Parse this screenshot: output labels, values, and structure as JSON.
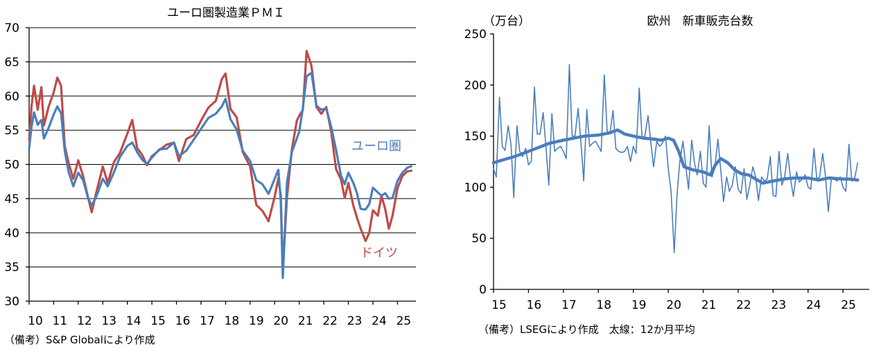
{
  "chart_data": [
    {
      "type": "line",
      "title": "ユーロ圏製造業ＰＭＩ",
      "xlabel": "",
      "ylabel": "",
      "ylim": [
        30,
        70
      ],
      "yticks": [
        "30",
        "35",
        "40",
        "45",
        "50",
        "55",
        "60",
        "65",
        "70"
      ],
      "xlim": [
        2010,
        2025.75
      ],
      "xticks": [
        "10",
        "11",
        "12",
        "13",
        "14",
        "15",
        "16",
        "17",
        "18",
        "19",
        "20",
        "21",
        "22",
        "23",
        "24",
        "25"
      ],
      "note": "（備考）S&P Globalにより作成",
      "series": [
        {
          "name": "ユーロ圏",
          "color": "#4a7ebb",
          "x": [
            2010.0,
            2010.1,
            2010.2,
            2010.35,
            2010.5,
            2010.6,
            2010.8,
            2011.0,
            2011.15,
            2011.3,
            2011.45,
            2011.6,
            2011.8,
            2012.0,
            2012.2,
            2012.4,
            2012.55,
            2012.75,
            2013.0,
            2013.2,
            2013.45,
            2013.7,
            2014.0,
            2014.2,
            2014.4,
            2014.6,
            2014.8,
            2015.0,
            2015.3,
            2015.6,
            2015.9,
            2016.1,
            2016.4,
            2016.7,
            2017.0,
            2017.3,
            2017.6,
            2017.85,
            2018.0,
            2018.2,
            2018.45,
            2018.7,
            2019.0,
            2019.25,
            2019.5,
            2019.75,
            2020.0,
            2020.15,
            2020.25,
            2020.33,
            2020.5,
            2020.7,
            2020.9,
            2021.0,
            2021.15,
            2021.3,
            2021.5,
            2021.7,
            2021.9,
            2022.1,
            2022.3,
            2022.5,
            2022.7,
            2022.85,
            2023.0,
            2023.2,
            2023.35,
            2023.5,
            2023.7,
            2023.85,
            2024.0,
            2024.2,
            2024.35,
            2024.5,
            2024.65,
            2024.8,
            2025.0,
            2025.2,
            2025.4,
            2025.6
          ],
          "values": [
            52.3,
            55.5,
            57.6,
            55.8,
            56.5,
            53.8,
            55.4,
            57.3,
            58.5,
            57.5,
            52.0,
            49.0,
            46.8,
            48.8,
            47.7,
            45.1,
            44.0,
            45.4,
            47.9,
            46.8,
            48.8,
            51.1,
            52.7,
            53.2,
            51.8,
            50.7,
            50.1,
            51.0,
            52.2,
            52.3,
            53.2,
            51.2,
            52.0,
            53.6,
            55.2,
            56.8,
            57.4,
            58.5,
            59.6,
            56.6,
            55.1,
            52.0,
            50.5,
            47.7,
            47.1,
            45.7,
            47.9,
            49.2,
            44.5,
            33.4,
            47.4,
            51.8,
            53.8,
            54.8,
            58.3,
            62.9,
            63.4,
            58.6,
            58.0,
            58.2,
            55.5,
            52.1,
            48.4,
            47.1,
            48.8,
            47.3,
            45.8,
            43.5,
            43.4,
            44.2,
            46.6,
            45.9,
            45.4,
            45.8,
            45.0,
            45.1,
            47.6,
            48.8,
            49.5,
            49.8
          ]
        },
        {
          "name": "ドイツ",
          "color": "#be4b48",
          "x": [
            2010.0,
            2010.1,
            2010.2,
            2010.35,
            2010.5,
            2010.6,
            2010.8,
            2011.0,
            2011.15,
            2011.3,
            2011.45,
            2011.6,
            2011.8,
            2012.0,
            2012.2,
            2012.4,
            2012.55,
            2012.75,
            2013.0,
            2013.2,
            2013.45,
            2013.7,
            2014.0,
            2014.2,
            2014.4,
            2014.6,
            2014.8,
            2015.0,
            2015.3,
            2015.6,
            2015.9,
            2016.1,
            2016.4,
            2016.7,
            2017.0,
            2017.3,
            2017.6,
            2017.85,
            2018.0,
            2018.2,
            2018.45,
            2018.7,
            2019.0,
            2019.25,
            2019.5,
            2019.75,
            2020.0,
            2020.15,
            2020.25,
            2020.33,
            2020.5,
            2020.7,
            2020.9,
            2021.0,
            2021.15,
            2021.3,
            2021.5,
            2021.7,
            2021.9,
            2022.1,
            2022.3,
            2022.5,
            2022.7,
            2022.85,
            2023.0,
            2023.2,
            2023.35,
            2023.5,
            2023.7,
            2023.85,
            2024.0,
            2024.2,
            2024.35,
            2024.5,
            2024.65,
            2024.8,
            2025.0,
            2025.2,
            2025.4,
            2025.6
          ],
          "values": [
            53.5,
            58.5,
            61.5,
            58.0,
            61.3,
            55.7,
            58.5,
            60.5,
            62.7,
            61.5,
            52.7,
            50.3,
            47.9,
            50.6,
            48.3,
            45.2,
            43.0,
            46.1,
            49.7,
            47.3,
            50.3,
            51.7,
            54.5,
            56.5,
            52.4,
            51.4,
            49.9,
            51.2,
            52.1,
            52.9,
            53.2,
            50.5,
            53.7,
            54.3,
            56.4,
            58.3,
            59.3,
            62.5,
            63.3,
            58.1,
            56.9,
            51.8,
            49.7,
            44.1,
            43.2,
            41.7,
            45.3,
            48.0,
            45.4,
            34.5,
            45.2,
            52.2,
            56.4,
            57.1,
            58.0,
            66.6,
            64.4,
            58.4,
            57.4,
            58.4,
            54.8,
            49.3,
            47.8,
            45.1,
            47.3,
            44.0,
            42.2,
            40.6,
            38.8,
            40.0,
            43.3,
            42.5,
            45.4,
            43.5,
            40.6,
            42.5,
            46.5,
            48.3,
            49.0,
            49.1
          ]
        }
      ]
    },
    {
      "type": "line",
      "title": "欧州　新車販売台数",
      "ylabel": "（万台）",
      "xlabel": "",
      "ylim": [
        0,
        250
      ],
      "yticks": [
        "0",
        "50",
        "100",
        "150",
        "200",
        "250"
      ],
      "xlim": [
        2015,
        2025.75
      ],
      "xticks": [
        "15",
        "16",
        "17",
        "18",
        "19",
        "20",
        "21",
        "22",
        "23",
        "24",
        "25"
      ],
      "note": "（備考）LSEGにより作成　太線：12か月平均",
      "series": [
        {
          "name": "月次",
          "color": "#4a7ebb",
          "x": [
            2015.0,
            2015.08,
            2015.17,
            2015.25,
            2015.33,
            2015.42,
            2015.5,
            2015.58,
            2015.67,
            2015.75,
            2015.83,
            2015.92,
            2016.0,
            2016.08,
            2016.17,
            2016.25,
            2016.33,
            2016.42,
            2016.5,
            2016.58,
            2016.67,
            2016.75,
            2016.83,
            2016.92,
            2017.0,
            2017.08,
            2017.17,
            2017.25,
            2017.33,
            2017.42,
            2017.5,
            2017.58,
            2017.67,
            2017.75,
            2017.83,
            2017.92,
            2018.0,
            2018.08,
            2018.17,
            2018.25,
            2018.33,
            2018.42,
            2018.5,
            2018.58,
            2018.67,
            2018.75,
            2018.83,
            2018.92,
            2019.0,
            2019.08,
            2019.17,
            2019.25,
            2019.33,
            2019.42,
            2019.5,
            2019.58,
            2019.67,
            2019.75,
            2019.83,
            2019.92,
            2020.0,
            2020.08,
            2020.17,
            2020.25,
            2020.33,
            2020.42,
            2020.5,
            2020.58,
            2020.67,
            2020.75,
            2020.83,
            2020.92,
            2021.0,
            2021.08,
            2021.17,
            2021.25,
            2021.33,
            2021.42,
            2021.5,
            2021.58,
            2021.67,
            2021.75,
            2021.83,
            2021.92,
            2022.0,
            2022.08,
            2022.17,
            2022.25,
            2022.33,
            2022.42,
            2022.5,
            2022.58,
            2022.67,
            2022.75,
            2022.83,
            2022.92,
            2023.0,
            2023.08,
            2023.17,
            2023.25,
            2023.33,
            2023.42,
            2023.5,
            2023.58,
            2023.67,
            2023.75,
            2023.83,
            2023.92,
            2024.0,
            2024.08,
            2024.17,
            2024.25,
            2024.33,
            2024.42,
            2024.5,
            2024.58,
            2024.67,
            2024.75,
            2024.83,
            2024.92,
            2025.0,
            2025.08,
            2025.17,
            2025.25,
            2025.33,
            2025.42
          ],
          "values": [
            118,
            110,
            188,
            140,
            136,
            160,
            142,
            90,
            160,
            135,
            130,
            138,
            122,
            125,
            198,
            152,
            152,
            173,
            140,
            102,
            172,
            135,
            138,
            140,
            135,
            128,
            220,
            150,
            150,
            177,
            145,
            106,
            176,
            140,
            143,
            145,
            140,
            135,
            210,
            155,
            152,
            175,
            138,
            135,
            134,
            135,
            140,
            125,
            140,
            133,
            197,
            148,
            150,
            170,
            144,
            120,
            145,
            140,
            143,
            150,
            118,
            96,
            36,
            92,
            125,
            145,
            121,
            98,
            146,
            124,
            112,
            135,
            104,
            100,
            160,
            110,
            118,
            147,
            118,
            86,
            110,
            96,
            102,
            120,
            98,
            94,
            118,
            88,
            102,
            120,
            110,
            87,
            110,
            106,
            108,
            130,
            92,
            91,
            135,
            102,
            110,
            133,
            108,
            91,
            115,
            105,
            108,
            112,
            100,
            98,
            138,
            108,
            110,
            133,
            110,
            76,
            110,
            108,
            106,
            110,
            100,
            96,
            142,
            106,
            108,
            124
          ]
        },
        {
          "name": "12か月平均",
          "color": "#4a7ebb",
          "x": [
            2015.0,
            2015.3,
            2015.6,
            2016.0,
            2016.3,
            2016.6,
            2017.0,
            2017.3,
            2017.6,
            2018.0,
            2018.3,
            2018.55,
            2018.75,
            2019.0,
            2019.3,
            2019.6,
            2019.8,
            2020.0,
            2020.15,
            2020.3,
            2020.45,
            2020.7,
            2021.0,
            2021.2,
            2021.35,
            2021.5,
            2021.7,
            2021.9,
            2022.1,
            2022.3,
            2022.5,
            2022.7,
            2023.0,
            2023.3,
            2023.6,
            2024.0,
            2024.3,
            2024.6,
            2025.0,
            2025.2,
            2025.42
          ],
          "values": [
            124,
            127,
            130,
            135,
            139,
            143,
            146,
            148,
            150,
            151,
            153,
            156,
            152,
            150,
            148,
            147,
            146,
            148,
            146,
            135,
            120,
            117,
            115,
            112,
            122,
            128,
            124,
            117,
            113,
            112,
            108,
            104,
            106,
            108,
            109,
            109,
            107,
            109,
            108,
            108,
            107
          ]
        }
      ]
    }
  ],
  "legend": {
    "euro_label": "ユーロ圏",
    "germany_label": "ドイツ"
  }
}
